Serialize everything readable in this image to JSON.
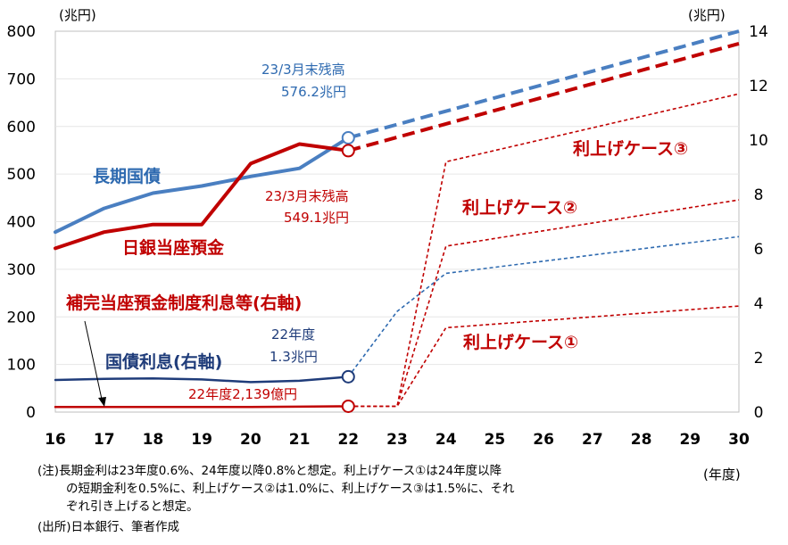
{
  "chart_data": {
    "type": "line",
    "x": [
      16,
      17,
      18,
      19,
      20,
      21,
      22,
      23,
      24,
      25,
      26,
      27,
      28,
      29,
      30
    ],
    "xlim": [
      16,
      30
    ],
    "xunit": "(年度)",
    "y_left": {
      "lim": [
        0,
        800
      ],
      "ticks": [
        0,
        100,
        200,
        300,
        400,
        500,
        600,
        700,
        800
      ],
      "unit": "(兆円)"
    },
    "y_right": {
      "lim": [
        0,
        14
      ],
      "ticks": [
        0,
        2,
        4,
        6,
        8,
        10,
        12,
        14
      ],
      "unit": "(兆円)"
    },
    "series": [
      {
        "key": "jgb",
        "name": "長期国債",
        "axis": "left",
        "color": "#4a7fc1",
        "dash": "solid",
        "width": 4,
        "points": [
          [
            16,
            378
          ],
          [
            17,
            428
          ],
          [
            18,
            460
          ],
          [
            19,
            475
          ],
          [
            20,
            495
          ],
          [
            21,
            512
          ],
          [
            22,
            576.2
          ]
        ]
      },
      {
        "key": "jgb_proj",
        "axis": "left",
        "color": "#4a7fc1",
        "dash": "long",
        "width": 4,
        "points": [
          [
            22,
            576.2
          ],
          [
            30,
            800
          ]
        ]
      },
      {
        "key": "boj",
        "name": "日銀当座預金",
        "axis": "left",
        "color": "#c00000",
        "dash": "solid",
        "width": 4,
        "points": [
          [
            16,
            344
          ],
          [
            17,
            378
          ],
          [
            18,
            394
          ],
          [
            19,
            394
          ],
          [
            20,
            522
          ],
          [
            21,
            563
          ],
          [
            22,
            549.1
          ]
        ]
      },
      {
        "key": "boj_proj",
        "axis": "left",
        "color": "#c00000",
        "dash": "long",
        "width": 4,
        "points": [
          [
            22,
            549.1
          ],
          [
            30,
            774
          ]
        ]
      },
      {
        "key": "interest",
        "name": "国債利息(右軸)",
        "axis": "right",
        "color": "#1f3c7a",
        "dash": "solid",
        "width": 2.5,
        "points": [
          [
            16,
            1.18
          ],
          [
            17,
            1.22
          ],
          [
            18,
            1.24
          ],
          [
            19,
            1.2
          ],
          [
            20,
            1.1
          ],
          [
            21,
            1.15
          ],
          [
            22,
            1.3
          ]
        ]
      },
      {
        "key": "interest_proj",
        "axis": "right",
        "color": "#2e6ab0",
        "dash": "short",
        "width": 1.6,
        "points": [
          [
            22,
            1.3
          ],
          [
            23,
            3.7
          ],
          [
            24,
            5.1
          ],
          [
            30,
            6.45
          ]
        ]
      },
      {
        "key": "reserve",
        "name": "補完当座預金制度利息等(右軸)",
        "axis": "right",
        "color": "#c00000",
        "dash": "solid",
        "width": 2.5,
        "points": [
          [
            16,
            0.19
          ],
          [
            17,
            0.19
          ],
          [
            18,
            0.19
          ],
          [
            19,
            0.19
          ],
          [
            20,
            0.19
          ],
          [
            21,
            0.2
          ],
          [
            22,
            0.214
          ]
        ]
      },
      {
        "key": "case1",
        "axis": "right",
        "color": "#c00000",
        "dash": "short",
        "width": 1.6,
        "points": [
          [
            22,
            0.214
          ],
          [
            23,
            0.214
          ],
          [
            24,
            3.1
          ],
          [
            30,
            3.9
          ]
        ]
      },
      {
        "key": "case2",
        "axis": "right",
        "color": "#c00000",
        "dash": "short",
        "width": 1.6,
        "points": [
          [
            22,
            0.214
          ],
          [
            23,
            0.214
          ],
          [
            24,
            6.1
          ],
          [
            30,
            7.8
          ]
        ]
      },
      {
        "key": "case3",
        "axis": "right",
        "color": "#c00000",
        "dash": "short",
        "width": 1.6,
        "points": [
          [
            22,
            0.214
          ],
          [
            23,
            0.214
          ],
          [
            24,
            9.2
          ],
          [
            30,
            11.7
          ]
        ]
      }
    ],
    "markers": [
      {
        "series": "jgb",
        "x": 22,
        "y": 576.2,
        "axis": "left",
        "color": "#4a7fc1"
      },
      {
        "series": "boj",
        "x": 22,
        "y": 549.1,
        "axis": "left",
        "color": "#c00000"
      },
      {
        "series": "interest",
        "x": 22,
        "y": 1.3,
        "axis": "right",
        "color": "#1f3c7a"
      },
      {
        "series": "reserve",
        "x": 22,
        "y": 0.214,
        "axis": "right",
        "color": "#c00000"
      }
    ],
    "annotations": {
      "jgb_label": "長期国債",
      "boj_label": "日銀当座預金",
      "jgb_end_1": "23/3月末残高",
      "jgb_end_2": "576.2兆円",
      "boj_end_1": "23/3月末残高",
      "boj_end_2": "549.1兆円",
      "interest_label": "国債利息(右軸)",
      "interest_end_1": "22年度",
      "interest_end_2": "1.3兆円",
      "reserve_label": "補完当座預金制度利息等(右軸)",
      "reserve_end": "22年度2,139億円",
      "case1": "利上げケース①",
      "case2": "利上げケース②",
      "case3": "利上げケース③"
    }
  },
  "notes": {
    "line1": "(注)長期金利は23年度0.6%、24年度以降0.8%と想定。利上げケース①は24年度以降",
    "line2": "の短期金利を0.5%に、利上げケース②は1.0%に、利上げケース③は1.5%に、それ",
    "line3": "ぞれ引き上げると想定。",
    "source": "(出所)日本銀行、筆者作成"
  }
}
